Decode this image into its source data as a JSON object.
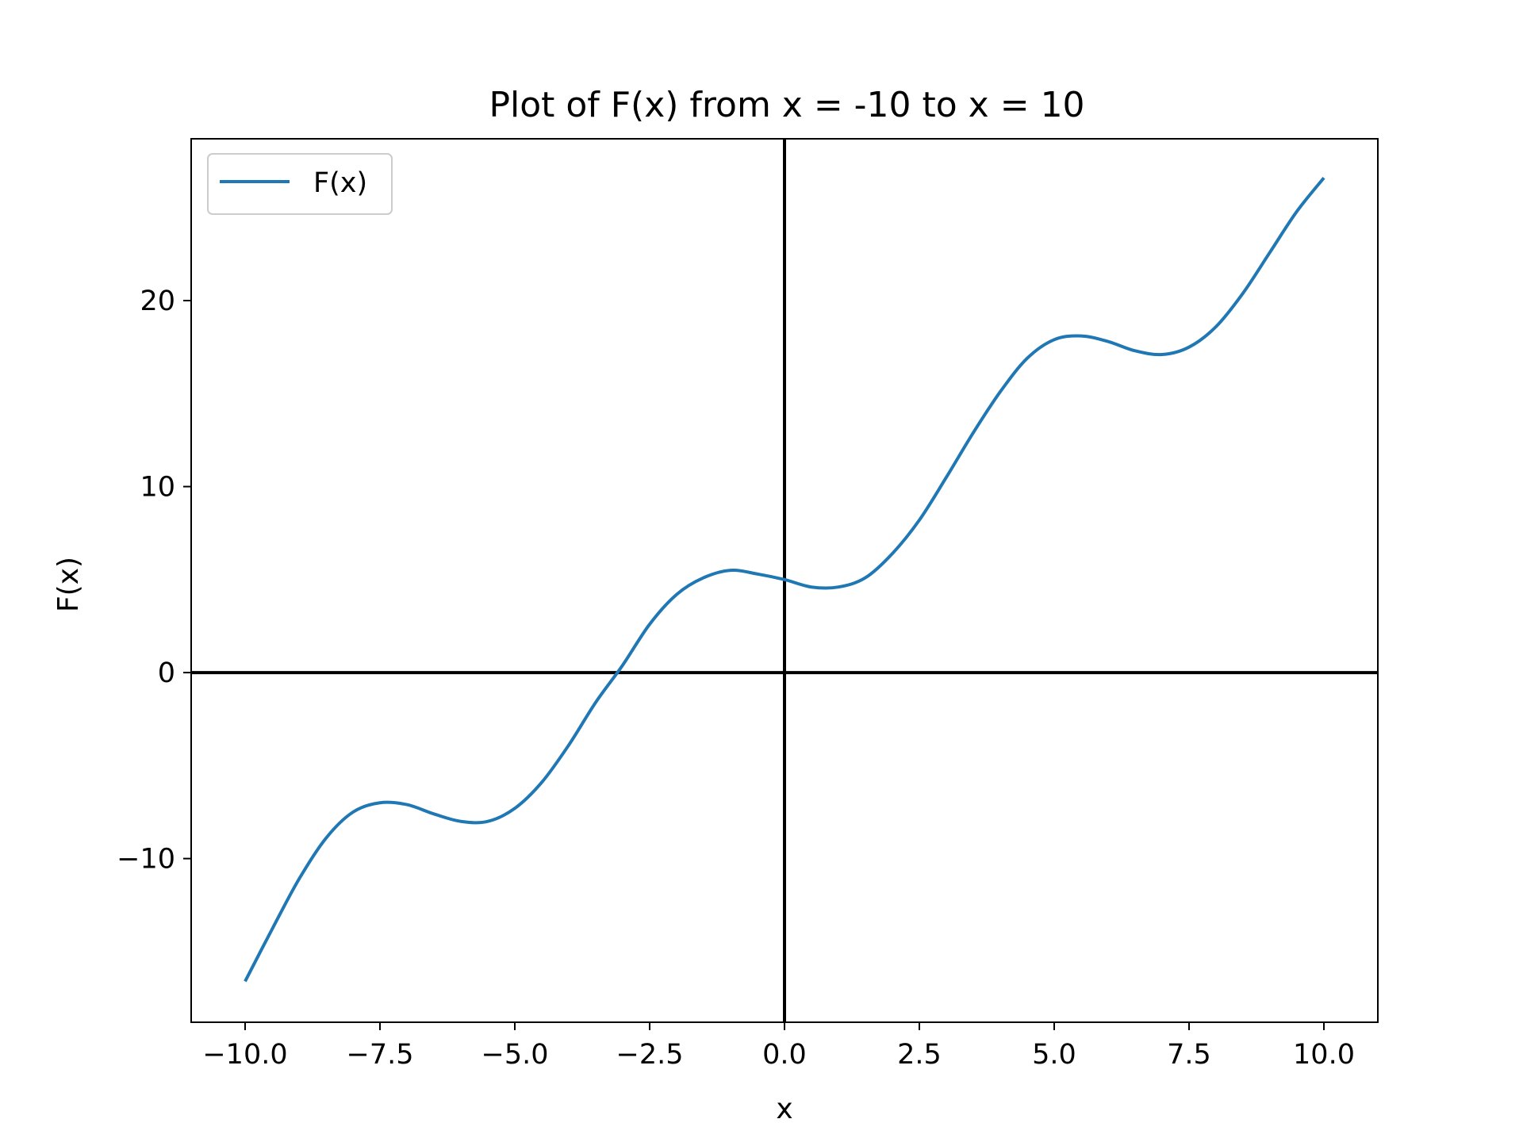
{
  "chart_data": {
    "type": "line",
    "title": "Plot of F(x) from x = -10 to x = 10",
    "xlabel": "x",
    "ylabel": "F(x)",
    "xlim": [
      -11,
      11
    ],
    "ylim": [
      -18.8,
      28.7
    ],
    "x_ticks": [
      -10.0,
      -7.5,
      -5.0,
      -2.5,
      0.0,
      2.5,
      5.0,
      7.5,
      10.0
    ],
    "x_tick_labels": [
      "−10.0",
      "−7.5",
      "−5.0",
      "−2.5",
      "0.0",
      "2.5",
      "5.0",
      "7.5",
      "10.0"
    ],
    "y_ticks": [
      -10,
      0,
      10,
      20
    ],
    "y_tick_labels": [
      "−10",
      "0",
      "10",
      "20"
    ],
    "grid": false,
    "legend": {
      "position": "upper-left"
    },
    "reference_lines": {
      "x": 0,
      "y": 0,
      "color": "#000000"
    },
    "series": [
      {
        "name": "F(x)",
        "color": "#1f77b4",
        "x": [
          -10,
          -9.5,
          -9,
          -8.5,
          -8,
          -7.5,
          -7,
          -6.5,
          -6,
          -5.5,
          -5,
          -4.5,
          -4,
          -3.5,
          -3,
          -2.5,
          -2,
          -1.5,
          -1,
          -0.5,
          0,
          0.5,
          1,
          1.5,
          2,
          2.5,
          3,
          3.5,
          4,
          4.5,
          5,
          5.5,
          6,
          6.5,
          7,
          7.5,
          8,
          8.5,
          9,
          9.5,
          10
        ],
        "y": [
          -16.6,
          -13.8,
          -11.1,
          -8.9,
          -7.5,
          -7.0,
          -7.1,
          -7.6,
          -8.0,
          -8.0,
          -7.3,
          -5.9,
          -3.9,
          -1.6,
          0.4,
          2.6,
          4.2,
          5.1,
          5.5,
          5.3,
          5.0,
          4.6,
          4.6,
          5.1,
          6.4,
          8.2,
          10.5,
          12.9,
          15.1,
          16.9,
          17.9,
          18.1,
          17.8,
          17.3,
          17.1,
          17.5,
          18.6,
          20.4,
          22.6,
          24.8,
          26.6
        ]
      }
    ]
  }
}
